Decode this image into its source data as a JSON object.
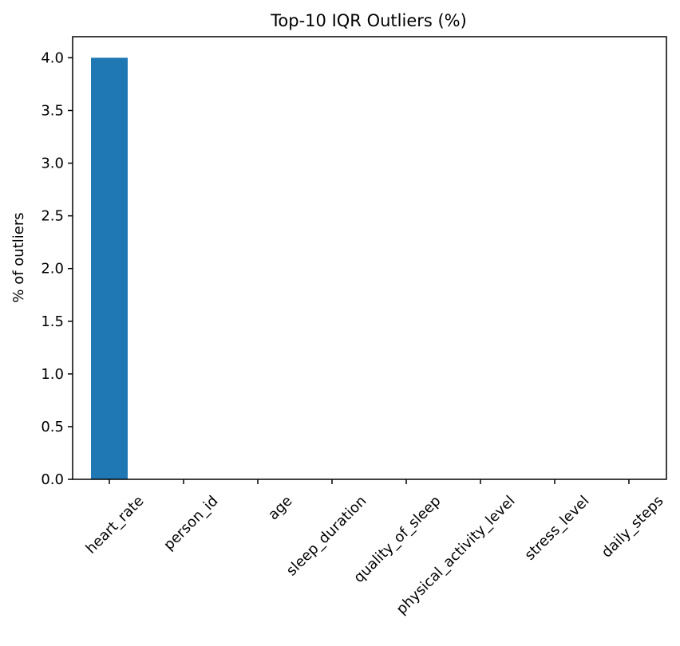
{
  "chart_data": {
    "type": "bar",
    "title": "Top-10 IQR Outliers (%)",
    "xlabel": "",
    "ylabel": "% of outliers",
    "categories": [
      "heart_rate",
      "person_id",
      "age",
      "sleep_duration",
      "quality_of_sleep",
      "physical_activity_level",
      "stress_level",
      "daily_steps"
    ],
    "values": [
      4.0,
      0,
      0,
      0,
      0,
      0,
      0,
      0
    ],
    "ylim": [
      0,
      4.2
    ],
    "yticks": [
      "0.0",
      "0.5",
      "1.0",
      "1.5",
      "2.0",
      "2.5",
      "3.0",
      "3.5",
      "4.0"
    ],
    "bar_color": "#1f77b4",
    "grid": false,
    "legend": "none"
  }
}
